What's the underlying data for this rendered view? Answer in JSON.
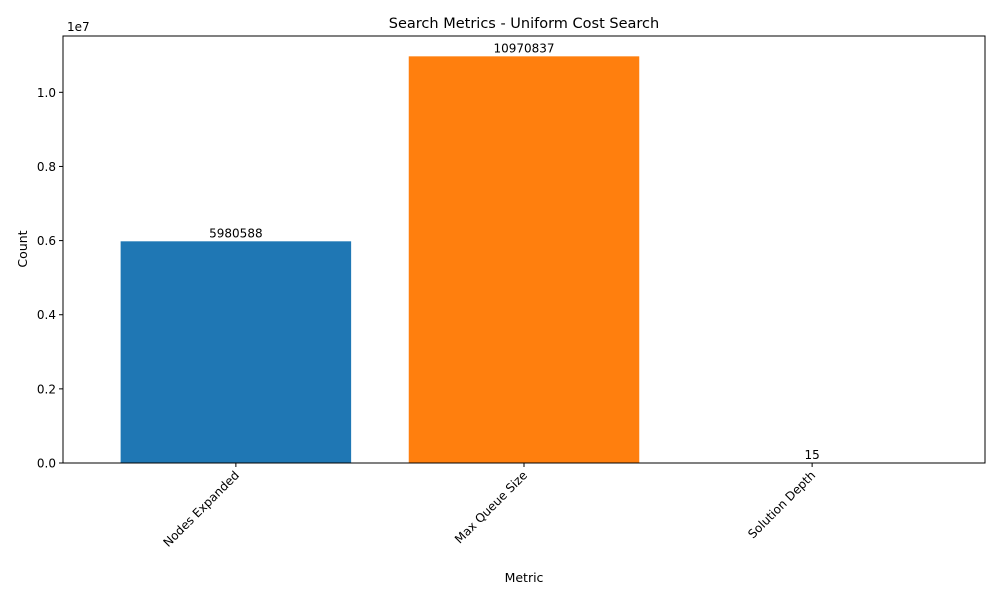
{
  "chart_data": {
    "type": "bar",
    "title": "Search Metrics - Uniform Cost Search",
    "xlabel": "Metric",
    "ylabel": "Count",
    "y_offset_label": "1e7",
    "y_scale": 10000000,
    "categories": [
      "Nodes Expanded",
      "Max Queue Size",
      "Solution Depth"
    ],
    "values": [
      5980588,
      10970837,
      15
    ],
    "bar_labels": [
      "5980588",
      "10970837",
      "15"
    ],
    "bar_colors": [
      "#1f77b4",
      "#ff7f0e",
      "#2ca02c"
    ],
    "ylim": [
      0,
      11519378.85
    ],
    "yticks": [
      0,
      2000000,
      4000000,
      6000000,
      8000000,
      10000000
    ],
    "ytick_labels": [
      "0.0",
      "0.2",
      "0.4",
      "0.6",
      "0.8",
      "1.0"
    ],
    "xtick_rotation_deg": 45,
    "grid": false,
    "legend": "none"
  }
}
